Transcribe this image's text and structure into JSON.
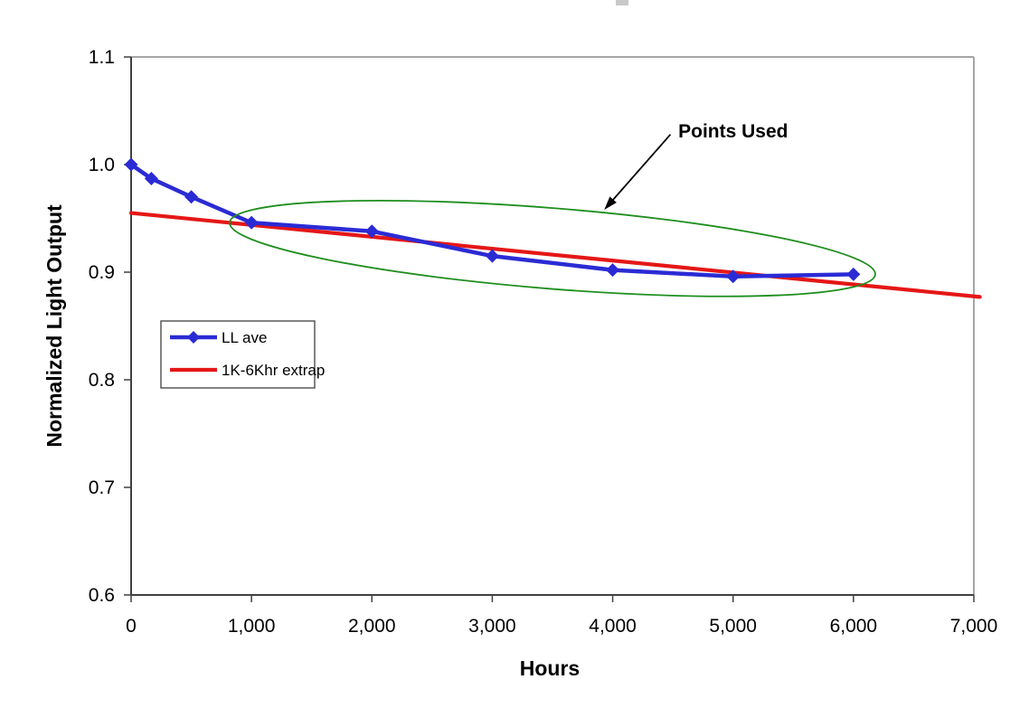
{
  "chart_data": {
    "type": "line",
    "title": "",
    "xlabel": "Hours",
    "ylabel": "Normalized Light Output",
    "xlim": [
      0,
      7000
    ],
    "ylim": [
      0.6,
      1.1
    ],
    "grid": false,
    "xticks": [
      0,
      1000,
      2000,
      3000,
      4000,
      5000,
      6000,
      7000
    ],
    "xtick_labels": [
      "0",
      "1,000",
      "2,000",
      "3,000",
      "4,000",
      "5,000",
      "6,000",
      "7,000"
    ],
    "yticks": [
      1.1,
      1.0,
      0.9,
      0.8,
      0.7,
      0.6
    ],
    "ytick_labels": [
      "1.1",
      "1.0",
      "0.9",
      "0.8",
      "0.7",
      "0.6"
    ],
    "legend": {
      "position": "inside-upper-left",
      "border": true
    },
    "series": [
      {
        "name": "LL ave",
        "type": "line-markers",
        "marker": "diamond",
        "color": "#2B2BD5",
        "x": [
          0,
          168,
          500,
          1000,
          2000,
          3000,
          4000,
          5000,
          6000
        ],
        "y": [
          1.0,
          0.987,
          0.97,
          0.946,
          0.938,
          0.915,
          0.902,
          0.896,
          0.898
        ]
      },
      {
        "name": "1K-6Khr extrap",
        "type": "line",
        "color": "#E51717",
        "x": [
          0,
          7050
        ],
        "y": [
          0.955,
          0.877
        ]
      }
    ],
    "annotations": {
      "ellipse": {
        "color": "#1E8E1E",
        "center_x_hours": 3500,
        "center_y_value": 0.922,
        "rx_hours": 2690,
        "ry_value": 0.0375,
        "rotation_deg": 4.6
      },
      "arrow": {
        "color": "#000000",
        "from": [
          4480,
          1.028
        ],
        "to": [
          3930,
          0.958
        ]
      },
      "label": {
        "text": "Points Used",
        "x_hours": 4545,
        "y_value": 1.032
      }
    },
    "colors": {
      "axis_dark": "#404040",
      "axis_light": "#A6A6A6",
      "tick_text": "#000000"
    }
  }
}
